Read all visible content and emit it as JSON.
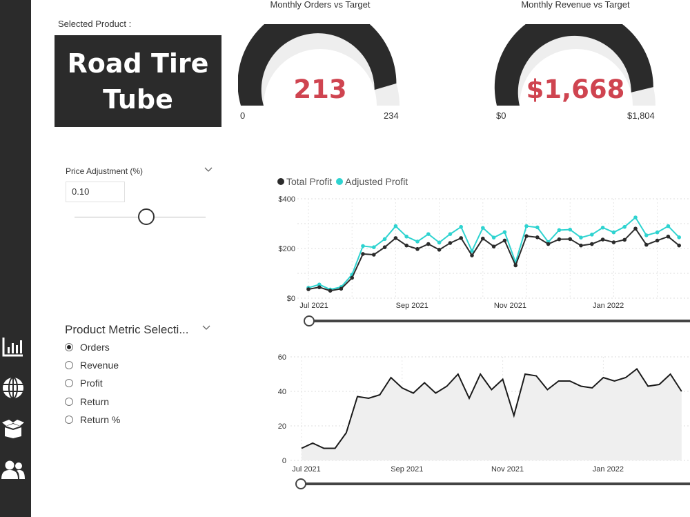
{
  "sidebar": {
    "icons": [
      "bar-chart-icon",
      "globe-icon",
      "box-icon",
      "users-icon"
    ]
  },
  "selected_product": {
    "label": "Selected Product :",
    "line1": "Road Tire",
    "line2": "Tube"
  },
  "gauges": [
    {
      "title": "Monthly Orders vs Target",
      "value": "213",
      "min": "0",
      "max": "234",
      "fraction": 0.91
    },
    {
      "title": "Monthly Revenue vs Target",
      "value": "$1,668",
      "min": "$0",
      "max": "$1,804",
      "fraction": 0.925
    }
  ],
  "price_adjustment": {
    "label": "Price Adjustment (%)",
    "value": "0.10"
  },
  "metric_selection": {
    "title": "Product Metric Selecti...",
    "options": [
      "Orders",
      "Revenue",
      "Profit",
      "Return",
      "Return %"
    ],
    "selected": "Orders"
  },
  "colors": {
    "dark": "#2b2b2b",
    "accent_red": "#cf4450",
    "teal": "#2ed3d0"
  },
  "chart_data": [
    {
      "type": "line",
      "legend": [
        "Total Profit",
        "Adjusted Profit"
      ],
      "x_ticks": [
        "Jul 2021",
        "Sep 2021",
        "Nov 2021",
        "Jan 2022"
      ],
      "y_ticks": [
        "$400",
        "$200",
        "$0"
      ],
      "ylim": [
        0,
        400
      ],
      "series": [
        {
          "name": "Total Profit",
          "color": "#2b2b2b",
          "values": [
            36,
            44,
            30,
            38,
            82,
            178,
            175,
            205,
            242,
            212,
            198,
            218,
            195,
            222,
            242,
            172,
            240,
            208,
            232,
            132,
            250,
            245,
            218,
            237,
            238,
            212,
            218,
            236,
            225,
            235,
            280,
            215,
            232,
            248,
            212
          ]
        },
        {
          "name": "Adjusted Profit",
          "color": "#2ed3d0",
          "values": [
            42,
            55,
            35,
            45,
            95,
            210,
            205,
            238,
            290,
            248,
            228,
            258,
            224,
            258,
            287,
            190,
            283,
            244,
            266,
            144,
            290,
            285,
            226,
            274,
            276,
            244,
            256,
            284,
            265,
            287,
            325,
            253,
            265,
            290,
            245
          ]
        }
      ]
    },
    {
      "type": "area",
      "x_ticks": [
        "Jul 2021",
        "Sep 2021",
        "Nov 2021",
        "Jan 2022"
      ],
      "y_ticks": [
        "60",
        "40",
        "20",
        "0"
      ],
      "ylim": [
        0,
        60
      ],
      "series": [
        {
          "color": "#1a1a1a",
          "values": [
            7,
            10,
            7,
            7,
            16,
            37,
            36,
            38,
            48,
            42,
            39,
            45,
            39,
            43,
            50,
            36,
            50,
            41,
            47,
            26,
            50,
            49,
            41,
            46,
            46,
            43,
            42,
            48,
            46,
            48,
            53,
            43,
            44,
            50,
            40
          ]
        }
      ]
    }
  ]
}
